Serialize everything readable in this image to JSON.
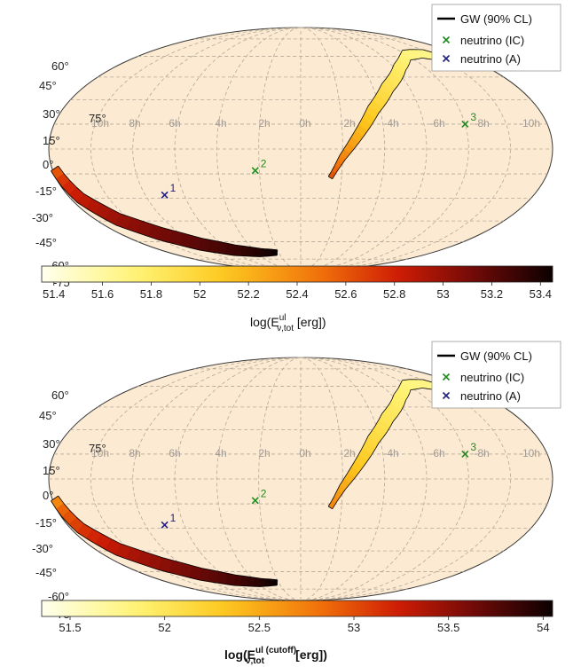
{
  "legend": {
    "gw_label": "GW (90% CL)",
    "nu_ic_label": "neutrino (IC)",
    "nu_a_label": "neutrino (A)"
  },
  "colors": {
    "sky_fill": "#fcebd2",
    "grid": "#b4a898",
    "grid_label": "#a09a94",
    "nu_ic": "#1e8c1e",
    "nu_a": "#202080",
    "gw_outline": "#000000"
  },
  "chart_data": [
    {
      "type": "heatmap",
      "projection": "mollweide",
      "grid": true,
      "dec_ticks": [
        "75°",
        "60°",
        "45°",
        "30°",
        "15°",
        "0°",
        "-15°",
        "-30°",
        "-45°",
        "-60°",
        "-75°"
      ],
      "ra_ticks": [
        "10h",
        "8h",
        "6h",
        "4h",
        "2h",
        "0h",
        "-2h",
        "-4h",
        "-6h",
        "-8h",
        "-10h"
      ],
      "neutrinos": [
        {
          "label": "3",
          "kind": "IC",
          "lon": 120,
          "lat": 15
        },
        {
          "label": "2",
          "kind": "IC",
          "lon": -33,
          "lat": -13
        },
        {
          "label": "1",
          "kind": "A",
          "lon": -105,
          "lat": -28
        }
      ],
      "colorbar": {
        "label": "log(E",
        "label_sup": "ul",
        "label_sub": "ν,tot",
        "label_tail": " [erg])",
        "min": 51.35,
        "max": 53.45,
        "ticks": [
          "51.4",
          "51.6",
          "51.8",
          "52",
          "52.2",
          "52.4",
          "52.6",
          "52.8",
          "53",
          "53.2",
          "53.4"
        ]
      },
      "gw_regions": [
        {
          "name": "north",
          "value_range": [
            51.5,
            52.6
          ]
        },
        {
          "name": "south",
          "value_range": [
            52.6,
            53.45
          ]
        }
      ],
      "legend_position": "top-right"
    },
    {
      "type": "heatmap",
      "projection": "mollweide",
      "grid": true,
      "dec_ticks": [
        "75°",
        "60°",
        "45°",
        "30°",
        "15°",
        "0°",
        "-15°",
        "-30°",
        "-45°",
        "-60°",
        "-75°"
      ],
      "ra_ticks": [
        "10h",
        "8h",
        "6h",
        "4h",
        "2h",
        "0h",
        "-2h",
        "-4h",
        "-6h",
        "-8h",
        "-10h"
      ],
      "neutrinos": [
        {
          "label": "3",
          "kind": "IC",
          "lon": 120,
          "lat": 15
        },
        {
          "label": "2",
          "kind": "IC",
          "lon": -33,
          "lat": -13
        },
        {
          "label": "1",
          "kind": "A",
          "lon": -105,
          "lat": -28
        }
      ],
      "colorbar": {
        "label": "log(E",
        "label_sup": "ul (cutoff)",
        "label_sub": "ν,tot",
        "label_tail": " [erg])",
        "min": 51.35,
        "max": 54.05,
        "ticks": [
          "51.5",
          "52",
          "52.5",
          "53",
          "53.5",
          "54"
        ]
      },
      "gw_regions": [
        {
          "name": "north",
          "value_range": [
            51.6,
            52.7
          ]
        },
        {
          "name": "south",
          "value_range": [
            52.7,
            54.05
          ]
        }
      ],
      "legend_position": "top-right"
    }
  ]
}
